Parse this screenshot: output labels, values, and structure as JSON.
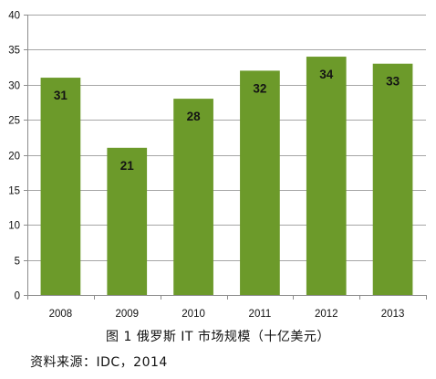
{
  "chart_data": {
    "type": "bar",
    "categories": [
      "2008",
      "2009",
      "2010",
      "2011",
      "2012",
      "2013"
    ],
    "values": [
      31,
      21,
      28,
      32,
      34,
      33
    ],
    "data_labels": [
      "31",
      "21",
      "28",
      "32",
      "34",
      "33"
    ],
    "yticks": [
      "0",
      "5",
      "10",
      "15",
      "20",
      "25",
      "30",
      "35",
      "40"
    ],
    "ylim": [
      0,
      40
    ],
    "grid": true,
    "bar_color": "#6c9a2a",
    "title": "",
    "xlabel": "",
    "ylabel": ""
  },
  "caption": "图 1 俄罗斯 IT 市场规模（十亿美元）",
  "source": "资料来源：IDC，2014"
}
